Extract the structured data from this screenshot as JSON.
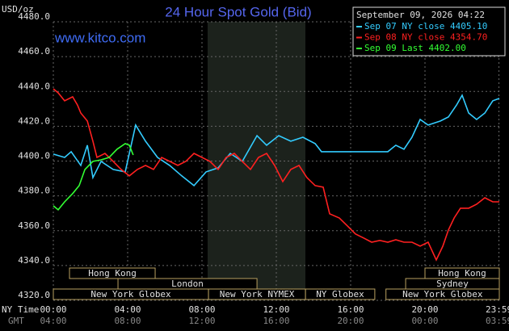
{
  "chart_data": {
    "type": "line",
    "title": "24 Hour Spot Gold (Bid)",
    "subtitle": "www.kitco.com",
    "y_label": "USD/oz",
    "x_label": "NY Time",
    "x2_label": "GMT",
    "legend_title": "September 09, 2026 04:22",
    "xlim": [
      0,
      24
    ],
    "xticks": [
      {
        "value": 0,
        "label": "00:00"
      },
      {
        "value": 4,
        "label": "04:00"
      },
      {
        "value": 8,
        "label": "08:00"
      },
      {
        "value": 12,
        "label": "12:00"
      },
      {
        "value": 16,
        "label": "16:00"
      },
      {
        "value": 20,
        "label": "20:00"
      },
      {
        "value": 23.98,
        "label": "23:59"
      }
    ],
    "x2ticklabels": [
      "04:00",
      "08:00",
      "12:00",
      "16:00",
      "20:00",
      "00:00",
      "03:59"
    ],
    "ylim": [
      4320,
      4480
    ],
    "yticks": [
      {
        "value": 4320,
        "label": "4320.0"
      },
      {
        "value": 4340,
        "label": "4340.0"
      },
      {
        "value": 4360,
        "label": "4360.0"
      },
      {
        "value": 4380,
        "label": "4380.0"
      },
      {
        "value": 4400,
        "label": "4400.0"
      },
      {
        "value": 4420,
        "label": "4420.0"
      },
      {
        "value": 4440,
        "label": "4440.0"
      },
      {
        "value": 4460,
        "label": "4460.0"
      },
      {
        "value": 4480,
        "label": "4480.0"
      }
    ],
    "grid": true,
    "sessions": [
      "Hong Kong",
      "London",
      "New York Globex",
      "New York NYMEX",
      "NY Globex",
      "Hong Kong",
      "Sydney",
      "New York Globex"
    ],
    "series": [
      {
        "name": "Sep 07 NY close 4405.10",
        "color": "#33ccff",
        "x": [
          0,
          0.61,
          0.96,
          1.48,
          1.83,
          2.13,
          2.57,
          3.22,
          3.87,
          4.09,
          4.43,
          4.96,
          5.61,
          6.26,
          6.91,
          7.57,
          8.22,
          8.87,
          9.52,
          10.17,
          10.96,
          11.48,
          12.13,
          12.78,
          13.43,
          14.09,
          14.43,
          18,
          18.43,
          18.87,
          19.3,
          19.74,
          20.17,
          20.83,
          21.26,
          21.7,
          22,
          22.35,
          22.78,
          23.22,
          23.65,
          24
        ],
        "values": [
          4404.0,
          4402.1,
          4405.4,
          4397.5,
          4409.1,
          4390.5,
          4399.8,
          4395.2,
          4393.8,
          4404.4,
          4420.7,
          4411.4,
          4402.1,
          4397.5,
          4391.5,
          4385.9,
          4393.8,
          4396.1,
          4404.4,
          4399.8,
          4414.6,
          4409.1,
          4414.6,
          4411.4,
          4413.7,
          4410.0,
          4405.4,
          4405.4,
          4409.1,
          4406.8,
          4413.7,
          4423.9,
          4420.7,
          4423.0,
          4425.3,
          4432.2,
          4437.8,
          4427.6,
          4423.9,
          4427.6,
          4434.6,
          4436.0
        ]
      },
      {
        "name": "Sep 08 NY close 4354.70",
        "color": "#ff2020",
        "x": [
          0,
          0.26,
          0.61,
          1.04,
          1.3,
          1.48,
          1.83,
          2.13,
          2.35,
          2.78,
          3.22,
          3.65,
          4.09,
          4.52,
          4.96,
          5.39,
          5.83,
          6.26,
          6.7,
          7.13,
          7.57,
          8,
          8.43,
          8.87,
          9.3,
          9.74,
          10.17,
          10.61,
          11.04,
          11.48,
          11.91,
          12.35,
          12.78,
          13.22,
          13.65,
          14.09,
          14.52,
          14.87,
          15.39,
          15.83,
          16.26,
          16.7,
          17.13,
          17.57,
          18,
          18.43,
          18.87,
          19.3,
          19.74,
          20.17,
          20.61,
          20.96,
          21.26,
          21.57,
          21.91,
          22.35,
          22.78,
          23.22,
          23.65,
          24
        ],
        "values": [
          4441.5,
          4439.2,
          4434.6,
          4436.9,
          4432.2,
          4427.6,
          4423.0,
          4411.4,
          4402.1,
          4404.4,
          4399.8,
          4395.2,
          4391.5,
          4395.2,
          4397.5,
          4395.2,
          4402.1,
          4399.8,
          4397.5,
          4399.8,
          4404.4,
          4402.1,
          4399.8,
          4395.2,
          4402.1,
          4404.4,
          4399.8,
          4395.2,
          4402.1,
          4404.4,
          4397.5,
          4388.2,
          4395.2,
          4397.5,
          4390.5,
          4385.9,
          4385.0,
          4369.7,
          4367.3,
          4362.7,
          4358.1,
          4355.8,
          4353.4,
          4354.4,
          4353.4,
          4354.8,
          4353.4,
          4353.4,
          4351.1,
          4353.4,
          4343.2,
          4351.1,
          4360.4,
          4367.3,
          4372.9,
          4372.9,
          4375.2,
          4378.9,
          4376.6,
          4376.6
        ]
      },
      {
        "name": "Sep 09 Last 4402.00",
        "color": "#33ff33",
        "x": [
          0,
          0.26,
          0.61,
          1.04,
          1.39,
          1.7,
          2.13,
          2.57,
          3,
          3.43,
          3.87,
          4.09,
          4.3
        ],
        "values": [
          4374.3,
          4372.0,
          4376.6,
          4381.3,
          4385.9,
          4395.2,
          4399.8,
          4400.7,
          4402.1,
          4406.8,
          4410.0,
          4409.1,
          4403.5
        ]
      }
    ]
  }
}
